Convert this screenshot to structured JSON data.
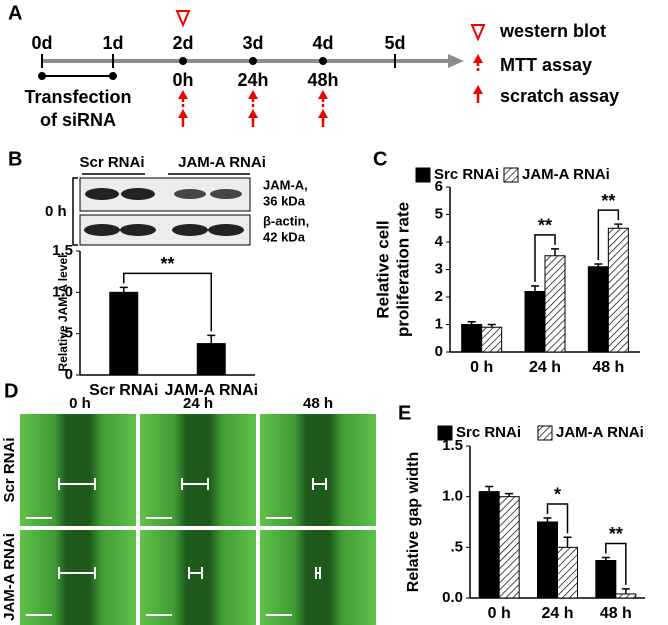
{
  "panel_labels": [
    "A",
    "B",
    "C",
    "D",
    "E"
  ],
  "timeline": {
    "days": [
      "0d",
      "1d",
      "2d",
      "3d",
      "4d",
      "5d"
    ],
    "hours": [
      "0h",
      "24h",
      "48h"
    ],
    "transfection": [
      "Transfection",
      "of siRNA"
    ],
    "legend": [
      "western blot",
      "MTT assay",
      "scratch assay"
    ]
  },
  "blot": {
    "groups": [
      "Scr RNAi",
      "JAM-A RNAi"
    ],
    "time": "0 h",
    "bands": [
      [
        "JAM-A,",
        "36 kDa"
      ],
      [
        "β-actin,",
        "42 kDa"
      ]
    ]
  },
  "micrographs": {
    "columns": [
      "0 h",
      "24 h",
      "48 h"
    ],
    "rows": [
      "Scr RNAi",
      "JAM-A RNAi"
    ]
  },
  "chart_data": [
    {
      "type": "bar",
      "ylabel": "Relative JAM-A level",
      "categories": [
        "Scr RNAi",
        "JAM-A RNAi"
      ],
      "series": [
        {
          "color": "#000000",
          "values": [
            1.0,
            0.38
          ],
          "errors": [
            0.06,
            0.1
          ]
        }
      ],
      "ylim": [
        0,
        1.5
      ],
      "yticks": [
        0,
        {
          "value": 0.5,
          "label": ".5"
        },
        {
          "value": 1,
          "label": "1.0"
        },
        {
          "value": 1.5,
          "label": "1.5"
        }
      ],
      "annotations": [
        "**"
      ]
    },
    {
      "type": "bar",
      "ylabel": [
        "Relative cell",
        "proliferation rate"
      ],
      "categories": [
        "0 h",
        "24 h",
        "48 h"
      ],
      "series": [
        {
          "name": "Src RNAi",
          "color": "#000000",
          "values": [
            1.0,
            2.2,
            3.1
          ],
          "errors": [
            0.1,
            0.2,
            0.1
          ]
        },
        {
          "name": "JAM-A RNAi",
          "color": "#000000",
          "pattern": "hatched",
          "values": [
            0.9,
            3.5,
            4.5
          ],
          "errors": [
            0.1,
            0.25,
            0.15
          ]
        }
      ],
      "ylim": [
        0,
        6
      ],
      "yticks": [
        0,
        1,
        2,
        3,
        4,
        5,
        6
      ],
      "annotations": [
        "**",
        "**"
      ]
    },
    {
      "type": "bar",
      "ylabel": "Relative gap width",
      "categories": [
        "0 h",
        "24 h",
        "48 h"
      ],
      "series": [
        {
          "name": "Src RNAi",
          "color": "#000000",
          "values": [
            1.05,
            0.75,
            0.37
          ],
          "errors": [
            0.05,
            0.04,
            0.03
          ]
        },
        {
          "name": "JAM-A RNAi",
          "color": "#000000",
          "pattern": "hatched",
          "values": [
            1.0,
            0.5,
            0.04
          ],
          "errors": [
            0.03,
            0.1,
            0.05
          ]
        }
      ],
      "ylim": [
        0,
        1.5
      ],
      "yticks": [
        {
          "value": 0,
          "label": "0.0"
        },
        {
          "value": 0.5,
          "label": ".5"
        },
        {
          "value": 1,
          "label": "1.0"
        },
        {
          "value": 1.5,
          "label": "1.5"
        }
      ],
      "annotations": [
        "*",
        "**"
      ]
    }
  ]
}
